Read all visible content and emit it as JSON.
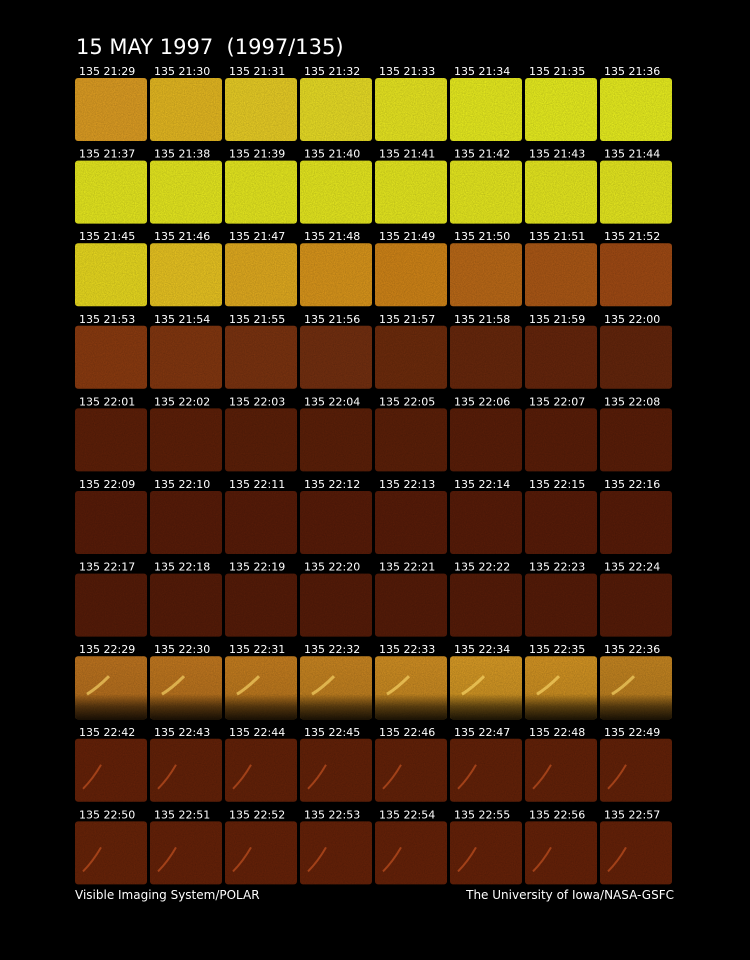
{
  "title": "15 MAY 1997  (1997/135)",
  "rows": [
    [
      "135 21:29",
      "135 21:30",
      "135 21:31",
      "135 21:32",
      "135 21:33",
      "135 21:34",
      "135 21:35",
      "135 21:36"
    ],
    [
      "135 21:37",
      "135 21:38",
      "135 21:39",
      "135 21:40",
      "135 21:41",
      "135 21:42",
      "135 21:43",
      "135 21:44"
    ],
    [
      "135 21:45",
      "135 21:46",
      "135 21:47",
      "135 21:48",
      "135 21:49",
      "135 21:50",
      "135 21:51",
      "135 21:52"
    ],
    [
      "135 21:53",
      "135 21:54",
      "135 21:55",
      "135 21:56",
      "135 21:57",
      "135 21:58",
      "135 21:59",
      "135 22:00"
    ],
    [
      "135 22:01",
      "135 22:02",
      "135 22:03",
      "135 22:04",
      "135 22:05",
      "135 22:06",
      "135 22:07",
      "135 22:08"
    ],
    [
      "135 22:09",
      "135 22:10",
      "135 22:11",
      "135 22:12",
      "135 22:13",
      "135 22:14",
      "135 22:15",
      "135 22:16"
    ],
    [
      "135 22:17",
      "135 22:18",
      "135 22:19",
      "135 22:20",
      "135 22:21",
      "135 22:22",
      "135 22:23",
      "135 22:24"
    ],
    [
      "135 22:29",
      "135 22:30",
      "135 22:31",
      "135 22:32",
      "135 22:33",
      "135 22:34",
      "135 22:35",
      "135 22:36"
    ],
    [
      "135 22:42",
      "135 22:43",
      "135 22:44",
      "135 22:45",
      "135 22:46",
      "135 22:47",
      "135 22:48",
      "135 22:49"
    ],
    [
      "135 22:50",
      "135 22:51",
      "135 22:52",
      "135 22:53",
      "135 22:54",
      "135 22:55",
      "135 22:56",
      "135 22:57"
    ]
  ],
  "footer": {
    "left": "Visible Imaging System/POLAR",
    "right": "The University of Iowa/NASA-GSFC"
  }
}
